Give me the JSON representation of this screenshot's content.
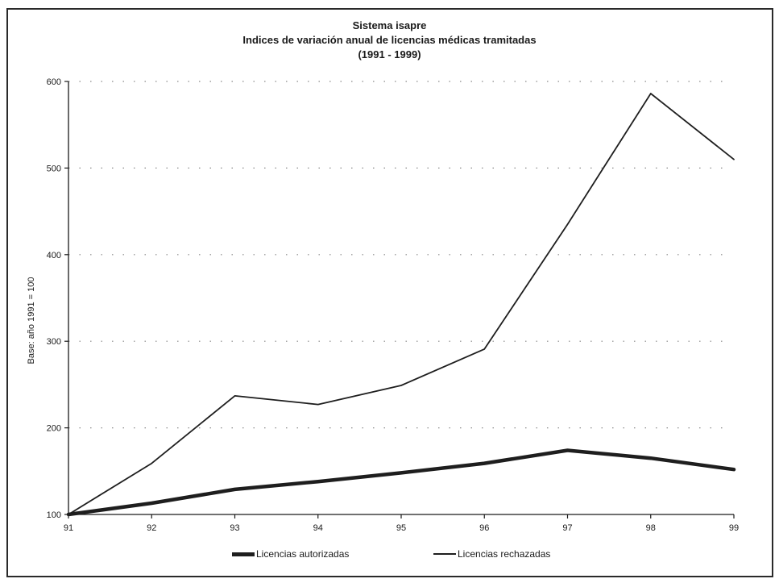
{
  "chart_data": {
    "type": "line",
    "title": "Sistema isapre",
    "subtitle": "Indices de variación anual de licencias médicas tramitadas",
    "period": "(1991 - 1999)",
    "xlabel": "",
    "ylabel": "Base: año 1991 = 100",
    "categories": [
      "91",
      "92",
      "93",
      "94",
      "95",
      "96",
      "97",
      "98",
      "99"
    ],
    "ylim": [
      100,
      600
    ],
    "yticks": [
      100,
      200,
      300,
      400,
      500,
      600
    ],
    "grid": "horizontal dotted",
    "legend_position": "bottom",
    "series": [
      {
        "name": "Licencias autorizadas",
        "values": [
          100,
          113,
          129,
          138,
          148,
          159,
          174,
          165,
          152
        ],
        "style": "thick",
        "color": "#1e1e1e"
      },
      {
        "name": "Licencias rechazadas",
        "values": [
          100,
          159,
          237,
          227,
          249,
          291,
          435,
          586,
          510
        ],
        "style": "thin",
        "color": "#1e1e1e"
      }
    ]
  }
}
